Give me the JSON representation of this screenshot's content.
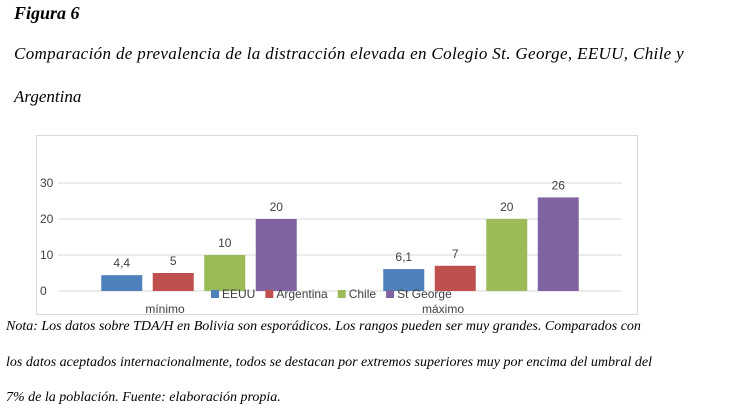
{
  "figure": {
    "label": "Figura 6",
    "title_line1": "Comparación de prevalencia de la distracción elevada en Colegio St. George, EEUU, Chile y",
    "title_line2": "Argentina"
  },
  "note": {
    "line1": "Nota: Los datos sobre TDA/H en Bolivia son esporádicos. Los rangos pueden ser muy grandes. Comparados con",
    "line2": "los datos aceptados internacionalmente, todos se destacan por extremos superiores muy por encima del umbral del",
    "line3": "7% de la población.  Fuente: elaboración propia."
  },
  "chart_data": {
    "type": "bar",
    "categories": [
      "mínimo",
      "máximo"
    ],
    "series": [
      {
        "name": "EEUU",
        "values": [
          4.4,
          6.1
        ],
        "labels": [
          "4,4",
          "6,1"
        ],
        "color": "#4f81bd"
      },
      {
        "name": "Argentina",
        "values": [
          5,
          7
        ],
        "labels": [
          "5",
          "7"
        ],
        "color": "#c0504d"
      },
      {
        "name": "Chile",
        "values": [
          10,
          20
        ],
        "labels": [
          "10",
          "20"
        ],
        "color": "#9bbb59"
      },
      {
        "name": "St George",
        "values": [
          20,
          26
        ],
        "labels": [
          "20",
          "26"
        ],
        "color": "#8064a2"
      }
    ],
    "y_ticks": [
      "0",
      "10",
      "20",
      "30"
    ],
    "ylim": [
      0,
      30
    ],
    "grid": true,
    "legend_position": "bottom",
    "title": "",
    "xlabel": "",
    "ylabel": ""
  }
}
